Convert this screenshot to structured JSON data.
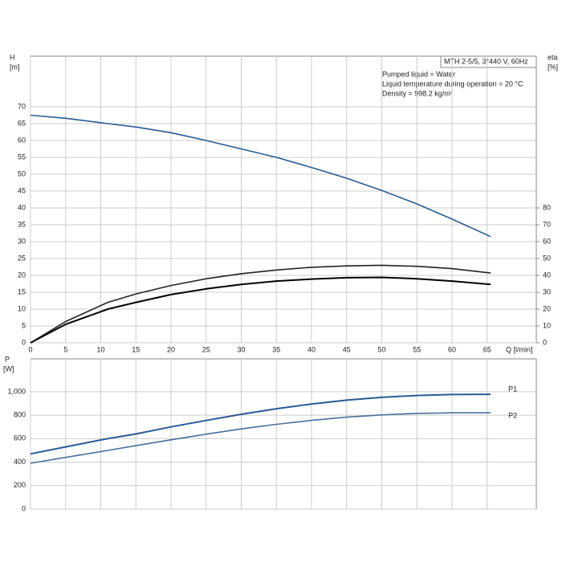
{
  "chart_data": [
    {
      "type": "line",
      "ylabel": "H",
      "yunit": "[m]",
      "y2label": "eta",
      "y2unit": "[%]",
      "xlabel": "Q [l/min]",
      "info_title": "MTH 2-5/5, 3*440 V, 60Hz",
      "annotations": [
        "Pumped liquid = Water",
        "Liquid temperature during operation = 20 °C",
        "Density = 998.2 kg/m³"
      ],
      "x": [
        0,
        5,
        11,
        15,
        20,
        25,
        30,
        35,
        40,
        45,
        50,
        55,
        60,
        65.5
      ],
      "series": [
        {
          "color": "#2a5a94",
          "values": [
            67.5,
            66.6,
            65,
            64,
            62.3,
            60,
            57.5,
            55,
            52,
            48.8,
            45.2,
            41.2,
            36.7,
            31.5
          ]
        },
        {
          "color": "#222222",
          "axis": "y2",
          "values": [
            0,
            12.6,
            24,
            29,
            34,
            38,
            41,
            43.2,
            44.8,
            45.6,
            46,
            45.4,
            44,
            41.4
          ]
        },
        {
          "color": "#000000",
          "axis": "y2",
          "values": [
            0,
            11,
            20,
            24,
            28.6,
            32,
            34.6,
            36.6,
            37.8,
            38.6,
            38.8,
            38,
            36.6,
            34.6
          ]
        }
      ],
      "xlim": [
        0,
        72
      ],
      "xticks": [
        0,
        5,
        10,
        15,
        20,
        25,
        30,
        35,
        40,
        45,
        50,
        55,
        60,
        65
      ],
      "ylim": [
        0,
        85
      ],
      "yticks": [
        0,
        5,
        10,
        15,
        20,
        25,
        30,
        35,
        40,
        45,
        50,
        55,
        60,
        65,
        70
      ],
      "y2lim": [
        0,
        170
      ],
      "y2ticks": [
        0,
        10,
        20,
        30,
        40,
        50,
        60,
        70,
        80
      ],
      "grid": true
    },
    {
      "type": "line",
      "ylabel": "P",
      "yunit": "[W]",
      "x": [
        0,
        5,
        11,
        15,
        20,
        25,
        30,
        35,
        40,
        45,
        50,
        55,
        60,
        65.5
      ],
      "series": [
        {
          "name": "P1",
          "color": "#2a5a94",
          "values": [
            470,
            530,
            600,
            640,
            700,
            755,
            808,
            855,
            895,
            928,
            952,
            968,
            976,
            978
          ]
        },
        {
          "name": "P2",
          "color": "#4a6f9a",
          "values": [
            390,
            440,
            500,
            540,
            590,
            638,
            683,
            722,
            756,
            783,
            802,
            815,
            820,
            820
          ]
        }
      ],
      "xlim": [
        0,
        72
      ],
      "ylim": [
        0,
        1280
      ],
      "yticks": [
        0,
        200,
        400,
        600,
        800,
        {
          "value": 1000,
          "label": "1,000"
        }
      ],
      "grid": true
    }
  ]
}
